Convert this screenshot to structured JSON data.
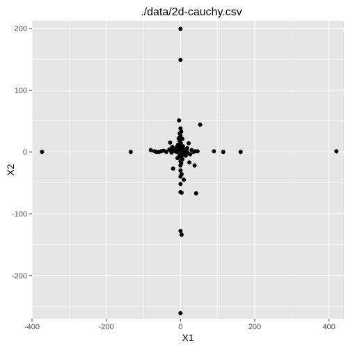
{
  "chart_data": {
    "type": "scatter",
    "title": "./data/2d-cauchy.csv",
    "xlabel": "X1",
    "ylabel": "X2",
    "xlim": [
      -400,
      440
    ],
    "ylim": [
      -270,
      212
    ],
    "x_ticks": [
      -400,
      -200,
      0,
      200,
      400
    ],
    "x_tick_labels": [
      "-400",
      "-200",
      "0",
      "200",
      "400"
    ],
    "y_ticks": [
      -200,
      -100,
      0,
      100,
      200
    ],
    "y_tick_labels": [
      "-200",
      "-100",
      "0",
      "100",
      "200"
    ],
    "grid": true,
    "background_color": "#e5e5e5",
    "grid_color": "#ffffff",
    "point_color": "#000000",
    "points": [
      [
        -373,
        0
      ],
      [
        -134,
        0
      ],
      [
        -80,
        3
      ],
      [
        -70,
        1
      ],
      [
        -64,
        0
      ],
      [
        -58,
        0
      ],
      [
        -52,
        1
      ],
      [
        -45,
        2
      ],
      [
        -38,
        0
      ],
      [
        -30,
        4
      ],
      [
        -28,
        15
      ],
      [
        -26,
        2
      ],
      [
        -24,
        -1
      ],
      [
        -22,
        8
      ],
      [
        -20,
        -27
      ],
      [
        -18,
        5
      ],
      [
        -16,
        3
      ],
      [
        -14,
        1
      ],
      [
        -12,
        6
      ],
      [
        -10,
        0
      ],
      [
        -9,
        9
      ],
      [
        -8,
        -10
      ],
      [
        -7,
        3
      ],
      [
        -6,
        12
      ],
      [
        -5,
        22
      ],
      [
        -4,
        51
      ],
      [
        -3,
        4
      ],
      [
        -3,
        -6
      ],
      [
        -2,
        30
      ],
      [
        -2,
        18
      ],
      [
        -1,
        10
      ],
      [
        -1,
        -4
      ],
      [
        0,
        199
      ],
      [
        0,
        149
      ],
      [
        0,
        38
      ],
      [
        0,
        26
      ],
      [
        0,
        7
      ],
      [
        0,
        -3
      ],
      [
        0,
        -15
      ],
      [
        0,
        -22
      ],
      [
        0,
        -30
      ],
      [
        0,
        -40
      ],
      [
        0,
        -52
      ],
      [
        0,
        -65
      ],
      [
        0,
        -128
      ],
      [
        0,
        -261
      ],
      [
        1,
        14
      ],
      [
        1,
        -8
      ],
      [
        2,
        33
      ],
      [
        2,
        2
      ],
      [
        2,
        -18
      ],
      [
        3,
        -36
      ],
      [
        3,
        -66
      ],
      [
        3,
        -134
      ],
      [
        4,
        5
      ],
      [
        4,
        -2
      ],
      [
        5,
        21
      ],
      [
        5,
        -12
      ],
      [
        6,
        1
      ],
      [
        6,
        -5
      ],
      [
        7,
        9
      ],
      [
        8,
        -3
      ],
      [
        9,
        -45
      ],
      [
        10,
        0
      ],
      [
        12,
        3
      ],
      [
        14,
        -6
      ],
      [
        16,
        2
      ],
      [
        18,
        6
      ],
      [
        20,
        -2
      ],
      [
        22,
        14
      ],
      [
        24,
        -17
      ],
      [
        26,
        -4
      ],
      [
        30,
        3
      ],
      [
        35,
        0
      ],
      [
        38,
        -22
      ],
      [
        40,
        1
      ],
      [
        42,
        -67
      ],
      [
        46,
        1
      ],
      [
        53,
        44
      ],
      [
        90,
        1
      ],
      [
        115,
        0
      ],
      [
        162,
        0
      ],
      [
        420,
        1
      ]
    ]
  }
}
